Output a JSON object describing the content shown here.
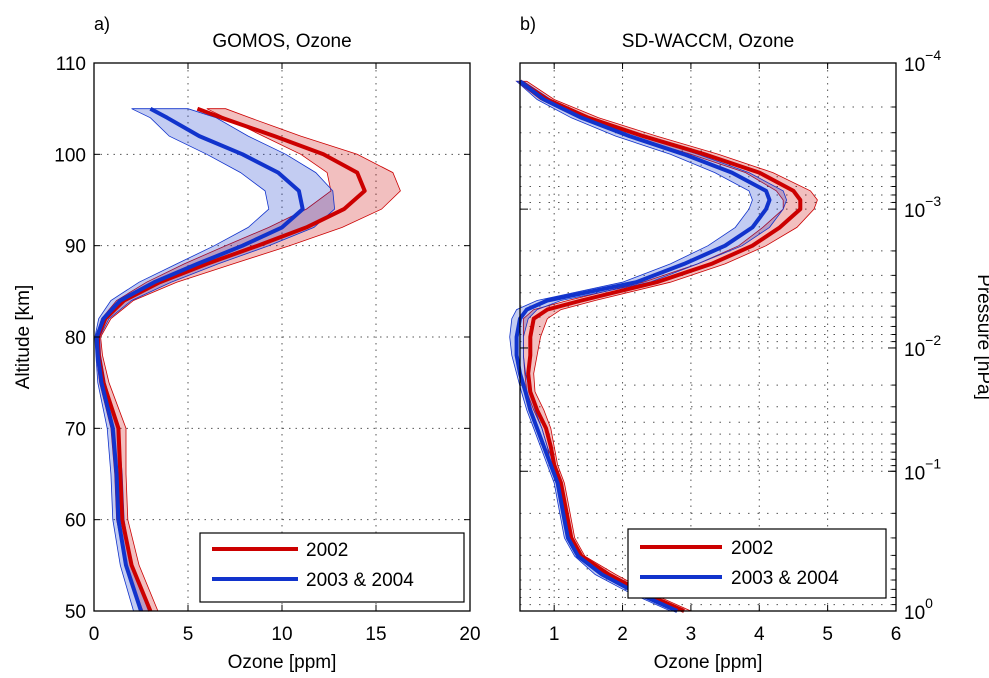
{
  "chart_data": [
    {
      "type": "line",
      "panel_label": "a)",
      "title": "GOMOS, Ozone",
      "xlabel": "Ozone [ppm]",
      "ylabel": "Altitude [km]",
      "xlim": [
        0,
        20
      ],
      "ylim": [
        50,
        110
      ],
      "xticks": [
        0,
        5,
        10,
        15,
        20
      ],
      "yticks": [
        50,
        60,
        70,
        80,
        90,
        100,
        110
      ],
      "grid": "dotted",
      "legend_position": "bottom-right",
      "series": [
        {
          "name": "2002",
          "color": "#cc0000",
          "altitude": [
            50,
            55,
            60,
            65,
            70,
            75,
            78,
            80,
            82,
            84,
            86,
            88,
            90,
            92,
            94,
            96,
            98,
            100,
            102,
            104,
            105
          ],
          "mean": [
            3.0,
            2.0,
            1.5,
            1.4,
            1.3,
            0.5,
            0.25,
            0.2,
            0.6,
            1.6,
            3.5,
            6.0,
            8.7,
            11.3,
            13.3,
            14.4,
            14.0,
            12.2,
            9.6,
            6.8,
            5.5
          ],
          "lower": [
            2.6,
            1.7,
            1.2,
            1.1,
            0.9,
            0.3,
            0.12,
            0.1,
            0.4,
            1.2,
            2.8,
            4.8,
            7.0,
            9.3,
            11.3,
            12.6,
            12.4,
            11.0,
            9.0,
            7.0,
            6.0
          ],
          "upper": [
            3.4,
            2.4,
            1.8,
            1.7,
            1.7,
            0.8,
            0.45,
            0.35,
            0.9,
            2.1,
            4.4,
            7.4,
            10.4,
            13.2,
            15.3,
            16.3,
            15.9,
            14.0,
            11.0,
            8.3,
            7.0
          ]
        },
        {
          "name": "2003 & 2004",
          "color": "#1133cc",
          "altitude": [
            50,
            55,
            60,
            65,
            70,
            75,
            78,
            80,
            82,
            84,
            86,
            88,
            90,
            92,
            94,
            96,
            98,
            100,
            102,
            104,
            105
          ],
          "mean": [
            2.5,
            1.7,
            1.3,
            1.2,
            1.0,
            0.4,
            0.2,
            0.15,
            0.5,
            1.4,
            3.2,
            5.5,
            7.9,
            10.0,
            11.1,
            10.9,
            9.8,
            7.9,
            5.6,
            3.9,
            3.0
          ],
          "lower": [
            2.1,
            1.4,
            1.0,
            0.9,
            0.7,
            0.2,
            0.1,
            0.05,
            0.25,
            0.9,
            2.4,
            4.4,
            6.4,
            8.2,
            9.3,
            9.1,
            7.8,
            6.0,
            4.0,
            3.0,
            2.0
          ],
          "upper": [
            2.9,
            2.0,
            1.6,
            1.5,
            1.3,
            0.6,
            0.35,
            0.3,
            0.8,
            2.0,
            4.1,
            6.6,
            9.3,
            11.7,
            12.8,
            12.7,
            11.8,
            10.2,
            8.2,
            6.5,
            5.0
          ]
        }
      ]
    },
    {
      "type": "line",
      "panel_label": "b)",
      "title": "SD-WACCM, Ozone",
      "xlabel": "Ozone [ppm]",
      "ylabel": "Pressure [hPa]",
      "xlim": [
        0.5,
        6
      ],
      "ylim": [
        50,
        110
      ],
      "xticks": [
        1,
        2,
        3,
        4,
        5,
        6
      ],
      "right_axis": {
        "scale": "log",
        "ticks": [
          {
            "base": "10",
            "exponent": "−4",
            "altitude": 110
          },
          {
            "base": "10",
            "exponent": "−3",
            "altitude": 94
          },
          {
            "base": "10",
            "exponent": "−2",
            "altitude": 78.8
          },
          {
            "base": "10",
            "exponent": "−1",
            "altitude": 65.3
          },
          {
            "base": "10",
            "exponent": "0",
            "altitude": 50
          }
        ]
      },
      "grid": "dotted",
      "legend_position": "bottom-right",
      "series": [
        {
          "name": "2002",
          "color": "#cc0000",
          "altitude": [
            50,
            52,
            54,
            56,
            58,
            60,
            62,
            64,
            66,
            68,
            70,
            72,
            74,
            76,
            78,
            80,
            82,
            83,
            84,
            86,
            88,
            90,
            92,
            94,
            95,
            96,
            98,
            100,
            102,
            104,
            106,
            108
          ],
          "mean": [
            2.9,
            2.3,
            1.8,
            1.4,
            1.25,
            1.2,
            1.15,
            1.1,
            1.0,
            0.95,
            0.88,
            0.75,
            0.65,
            0.62,
            0.65,
            0.65,
            0.7,
            0.9,
            1.4,
            2.5,
            3.3,
            3.9,
            4.3,
            4.6,
            4.6,
            4.5,
            4.0,
            3.2,
            2.3,
            1.5,
            0.9,
            0.5
          ],
          "lower": [
            2.8,
            2.2,
            1.7,
            1.35,
            1.2,
            1.15,
            1.1,
            1.05,
            0.95,
            0.9,
            0.82,
            0.7,
            0.6,
            0.57,
            0.55,
            0.55,
            0.55,
            0.7,
            1.2,
            2.3,
            3.1,
            3.7,
            4.05,
            4.35,
            4.35,
            4.25,
            3.8,
            3.0,
            2.1,
            1.35,
            0.8,
            0.45
          ],
          "upper": [
            3.0,
            2.4,
            1.9,
            1.45,
            1.3,
            1.25,
            1.2,
            1.15,
            1.05,
            1.0,
            0.95,
            0.85,
            0.72,
            0.7,
            0.75,
            0.8,
            0.9,
            1.1,
            1.6,
            2.7,
            3.5,
            4.1,
            4.55,
            4.8,
            4.85,
            4.75,
            4.2,
            3.4,
            2.5,
            1.65,
            1.0,
            0.6
          ]
        },
        {
          "name": "2003 & 2004",
          "color": "#1133cc",
          "altitude": [
            50,
            52,
            54,
            56,
            58,
            60,
            62,
            64,
            66,
            68,
            70,
            72,
            74,
            76,
            78,
            80,
            82,
            83,
            84,
            86,
            88,
            90,
            92,
            94,
            95,
            96,
            98,
            100,
            102,
            104,
            106,
            108
          ],
          "mean": [
            2.8,
            2.2,
            1.7,
            1.35,
            1.2,
            1.15,
            1.1,
            1.05,
            0.95,
            0.85,
            0.75,
            0.65,
            0.58,
            0.5,
            0.45,
            0.45,
            0.5,
            0.6,
            0.9,
            2.2,
            2.9,
            3.5,
            3.9,
            4.1,
            4.15,
            4.1,
            3.6,
            2.9,
            2.1,
            1.4,
            0.85,
            0.5
          ],
          "lower": [
            2.7,
            2.1,
            1.6,
            1.3,
            1.15,
            1.1,
            1.05,
            1.0,
            0.9,
            0.8,
            0.7,
            0.6,
            0.52,
            0.45,
            0.38,
            0.35,
            0.38,
            0.45,
            0.75,
            2.0,
            2.7,
            3.25,
            3.65,
            3.85,
            3.9,
            3.85,
            3.35,
            2.7,
            1.9,
            1.25,
            0.75,
            0.45
          ],
          "upper": [
            2.9,
            2.3,
            1.8,
            1.4,
            1.25,
            1.2,
            1.15,
            1.1,
            1.0,
            0.9,
            0.82,
            0.72,
            0.65,
            0.58,
            0.55,
            0.55,
            0.62,
            0.75,
            1.1,
            2.4,
            3.1,
            3.75,
            4.15,
            4.35,
            4.4,
            4.35,
            3.85,
            3.1,
            2.3,
            1.55,
            0.95,
            0.55
          ]
        }
      ]
    }
  ],
  "legend": {
    "entry_1": "2002",
    "entry_2": "2003 & 2004"
  }
}
